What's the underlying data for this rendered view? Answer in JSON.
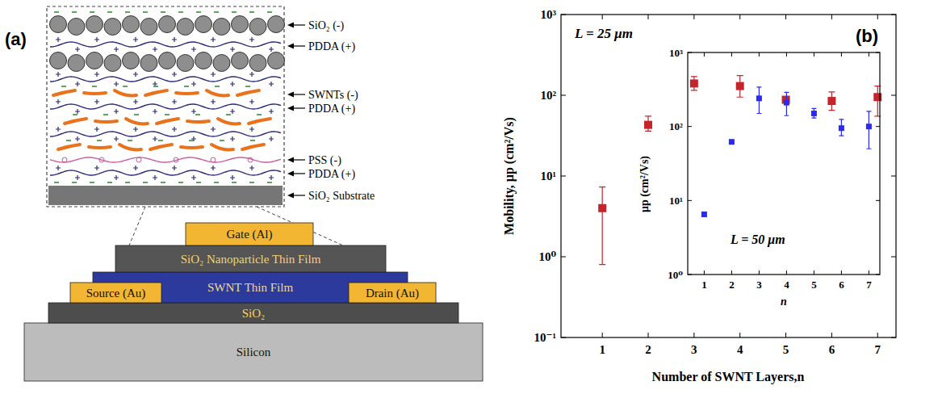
{
  "diagram": {
    "panel_label": "(a)",
    "layer_labels": [
      "SiO₂ (-)",
      "PDDA (+)",
      "SWNTs (-)",
      "PDDA (+)",
      "PSS (-)",
      "PDDA (+)",
      "SiO₂ Substrate"
    ],
    "device": {
      "gate": "Gate (Al)",
      "dielectric": "SiO₂ Nanoparticle Thin Film",
      "channel": "SWNT Thin Film",
      "source": "Source (Au)",
      "drain": "Drain (Au)",
      "oxide": "SiO₂",
      "substrate": "Silicon"
    }
  },
  "chart_data": [
    {
      "type": "scatter",
      "annotations": [
        "L = 25 μm",
        "(b)"
      ],
      "x_label": "Number of SWNT Layers,n",
      "y_label": "Mobility, μp (cm²/Vs)",
      "x": [
        1,
        2,
        3,
        4,
        5,
        6,
        7
      ],
      "series": [
        {
          "color": "#c4242b",
          "marker": "square",
          "values": [
            4,
            43,
            140,
            130,
            88,
            85,
            95
          ],
          "err_minus": [
            3.2,
            7,
            25,
            35,
            5,
            20,
            40
          ],
          "err_plus": [
            3.3,
            12,
            30,
            45,
            5,
            25,
            35
          ]
        }
      ],
      "xlim": [
        0.1,
        7.4
      ],
      "ylim": [
        0.1,
        1000
      ],
      "log": "y",
      "grid": false,
      "xticks": [
        1,
        2,
        3,
        4,
        5,
        6,
        7
      ],
      "yticks": [
        {
          "value": 0.1,
          "label": "10⁻¹"
        },
        {
          "value": 1,
          "label": "10⁰"
        },
        {
          "value": 10,
          "label": "10¹"
        },
        {
          "value": 100,
          "label": "10²"
        },
        {
          "value": 1000,
          "label": "10³"
        }
      ]
    },
    {
      "type": "scatter",
      "annotations": [
        "L = 50 μm"
      ],
      "x_label": "n",
      "y_label": "μp (cm²/Vs)",
      "x": [
        1,
        2,
        3,
        4,
        5,
        6,
        7
      ],
      "series": [
        {
          "color": "#2b2bf0",
          "marker": "square",
          "values": [
            6.5,
            62,
            240,
            210,
            150,
            95,
            100
          ],
          "err_minus": [
            0.3,
            3,
            90,
            70,
            20,
            20,
            50
          ],
          "err_plus": [
            0.3,
            3,
            100,
            80,
            25,
            30,
            60
          ]
        }
      ],
      "xlim": [
        0.4,
        7.4
      ],
      "ylim": [
        1,
        1000
      ],
      "log": "y",
      "grid": false,
      "xticks": [
        1,
        2,
        3,
        4,
        5,
        6,
        7
      ],
      "yticks": [
        {
          "value": 1,
          "label": "10⁰"
        },
        {
          "value": 10,
          "label": "10¹"
        },
        {
          "value": 100,
          "label": "10²"
        },
        {
          "value": 1000,
          "label": "10³"
        }
      ]
    }
  ]
}
